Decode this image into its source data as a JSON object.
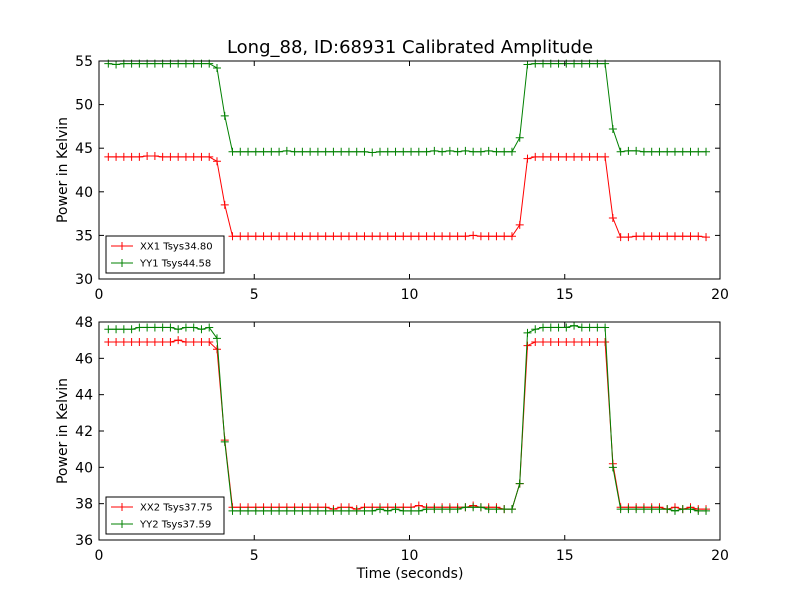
{
  "chart_data": [
    {
      "type": "line",
      "title": "Long_88, ID:68931 Calibrated Amplitude",
      "xlabel": "",
      "ylabel": "Power in Kelvin",
      "xlim": [
        0,
        20
      ],
      "ylim": [
        30,
        55
      ],
      "xticks": [
        "0",
        "5",
        "10",
        "15",
        "20"
      ],
      "yticks": [
        "30",
        "35",
        "40",
        "45",
        "50",
        "55"
      ],
      "legend_position": "lower-left",
      "x": [
        0.3,
        0.55,
        0.8,
        1.05,
        1.3,
        1.55,
        1.8,
        2.05,
        2.3,
        2.55,
        2.8,
        3.05,
        3.3,
        3.55,
        3.8,
        4.05,
        4.3,
        4.55,
        4.8,
        5.05,
        5.3,
        5.55,
        5.8,
        6.05,
        6.3,
        6.55,
        6.8,
        7.05,
        7.3,
        7.55,
        7.8,
        8.05,
        8.3,
        8.55,
        8.8,
        9.05,
        9.3,
        9.55,
        9.8,
        10.05,
        10.3,
        10.55,
        10.8,
        11.05,
        11.3,
        11.55,
        11.8,
        12.05,
        12.3,
        12.55,
        12.8,
        13.05,
        13.3,
        13.55,
        13.8,
        14.05,
        14.3,
        14.55,
        14.8,
        15.05,
        15.3,
        15.55,
        15.8,
        16.05,
        16.3,
        16.55,
        16.8,
        17.05,
        17.3,
        17.55,
        17.8,
        18.05,
        18.3,
        18.55,
        18.8,
        19.05,
        19.3,
        19.55
      ],
      "series": [
        {
          "name": "XX1 Tsys34.80",
          "color": "#ff0000",
          "values": [
            44.0,
            44.0,
            44.0,
            44.0,
            44.0,
            44.1,
            44.1,
            44.0,
            44.0,
            44.0,
            44.0,
            44.0,
            44.0,
            44.0,
            43.5,
            38.5,
            34.9,
            34.9,
            34.9,
            34.9,
            34.9,
            34.9,
            34.9,
            34.9,
            34.9,
            34.9,
            34.9,
            34.9,
            34.9,
            34.9,
            34.9,
            34.9,
            34.9,
            34.9,
            34.9,
            34.9,
            34.9,
            34.9,
            34.9,
            34.9,
            34.9,
            34.9,
            34.9,
            34.9,
            34.9,
            34.9,
            34.9,
            35.0,
            34.9,
            34.9,
            34.9,
            34.9,
            34.9,
            36.2,
            43.8,
            44.0,
            44.0,
            44.0,
            44.0,
            44.0,
            44.0,
            44.0,
            44.0,
            44.0,
            44.0,
            37.0,
            34.8,
            34.8,
            34.9,
            34.9,
            34.9,
            34.9,
            34.9,
            34.9,
            34.9,
            34.9,
            34.9,
            34.8
          ]
        },
        {
          "name": "YY1 Tsys44.58",
          "color": "#008000",
          "values": [
            54.7,
            54.6,
            54.7,
            54.7,
            54.7,
            54.7,
            54.7,
            54.7,
            54.7,
            54.7,
            54.7,
            54.7,
            54.7,
            54.7,
            54.2,
            48.7,
            44.6,
            44.6,
            44.6,
            44.6,
            44.6,
            44.6,
            44.6,
            44.7,
            44.6,
            44.6,
            44.6,
            44.6,
            44.6,
            44.6,
            44.6,
            44.6,
            44.6,
            44.6,
            44.5,
            44.6,
            44.6,
            44.6,
            44.6,
            44.6,
            44.6,
            44.6,
            44.7,
            44.6,
            44.7,
            44.6,
            44.7,
            44.6,
            44.6,
            44.7,
            44.6,
            44.6,
            44.6,
            46.2,
            54.6,
            54.7,
            54.7,
            54.7,
            54.7,
            54.7,
            54.7,
            54.7,
            54.7,
            54.7,
            54.7,
            47.2,
            44.6,
            44.7,
            44.7,
            44.6,
            44.6,
            44.6,
            44.6,
            44.6,
            44.6,
            44.6,
            44.6,
            44.6
          ]
        }
      ]
    },
    {
      "type": "line",
      "title": "",
      "xlabel": "Time (seconds)",
      "ylabel": "Power in Kelvin",
      "xlim": [
        0,
        20
      ],
      "ylim": [
        36,
        48
      ],
      "xticks": [
        "0",
        "5",
        "10",
        "15",
        "20"
      ],
      "yticks": [
        "36",
        "38",
        "40",
        "42",
        "44",
        "46",
        "48"
      ],
      "legend_position": "lower-left",
      "x": [
        0.3,
        0.55,
        0.8,
        1.05,
        1.3,
        1.55,
        1.8,
        2.05,
        2.3,
        2.55,
        2.8,
        3.05,
        3.3,
        3.55,
        3.8,
        4.05,
        4.3,
        4.55,
        4.8,
        5.05,
        5.3,
        5.55,
        5.8,
        6.05,
        6.3,
        6.55,
        6.8,
        7.05,
        7.3,
        7.55,
        7.8,
        8.05,
        8.3,
        8.55,
        8.8,
        9.05,
        9.3,
        9.55,
        9.8,
        10.05,
        10.3,
        10.55,
        10.8,
        11.05,
        11.3,
        11.55,
        11.8,
        12.05,
        12.3,
        12.55,
        12.8,
        13.05,
        13.3,
        13.55,
        13.8,
        14.05,
        14.3,
        14.55,
        14.8,
        15.05,
        15.3,
        15.55,
        15.8,
        16.05,
        16.3,
        16.55,
        16.8,
        17.05,
        17.3,
        17.55,
        17.8,
        18.05,
        18.3,
        18.55,
        18.8,
        19.05,
        19.3,
        19.55
      ],
      "series": [
        {
          "name": "XX2 Tsys37.75",
          "color": "#ff0000",
          "values": [
            46.9,
            46.9,
            46.9,
            46.9,
            46.9,
            46.9,
            46.9,
            46.9,
            46.9,
            47.0,
            46.9,
            46.9,
            46.9,
            46.9,
            46.5,
            41.5,
            37.8,
            37.8,
            37.8,
            37.8,
            37.8,
            37.8,
            37.8,
            37.8,
            37.8,
            37.8,
            37.8,
            37.8,
            37.8,
            37.7,
            37.8,
            37.8,
            37.7,
            37.8,
            37.8,
            37.8,
            37.8,
            37.8,
            37.8,
            37.8,
            37.9,
            37.8,
            37.8,
            37.8,
            37.8,
            37.8,
            37.8,
            37.9,
            37.8,
            37.8,
            37.8,
            37.7,
            37.7,
            39.1,
            46.7,
            46.9,
            46.9,
            46.9,
            46.9,
            46.9,
            46.9,
            46.9,
            46.9,
            46.9,
            46.9,
            40.2,
            37.8,
            37.8,
            37.8,
            37.8,
            37.8,
            37.8,
            37.7,
            37.8,
            37.7,
            37.8,
            37.7,
            37.7
          ]
        },
        {
          "name": "YY2 Tsys37.59",
          "color": "#008000",
          "values": [
            47.6,
            47.6,
            47.6,
            47.6,
            47.7,
            47.7,
            47.7,
            47.7,
            47.7,
            47.6,
            47.7,
            47.7,
            47.6,
            47.7,
            47.1,
            41.4,
            37.6,
            37.6,
            37.6,
            37.6,
            37.6,
            37.6,
            37.6,
            37.6,
            37.6,
            37.6,
            37.6,
            37.6,
            37.6,
            37.6,
            37.6,
            37.6,
            37.6,
            37.6,
            37.6,
            37.7,
            37.6,
            37.7,
            37.6,
            37.6,
            37.6,
            37.7,
            37.7,
            37.7,
            37.7,
            37.7,
            37.8,
            37.8,
            37.8,
            37.7,
            37.7,
            37.7,
            37.7,
            39.1,
            47.4,
            47.6,
            47.7,
            47.7,
            47.7,
            47.7,
            47.8,
            47.7,
            47.7,
            47.7,
            47.7,
            40.0,
            37.7,
            37.7,
            37.7,
            37.7,
            37.7,
            37.7,
            37.7,
            37.6,
            37.7,
            37.7,
            37.6,
            37.6
          ]
        }
      ]
    }
  ]
}
